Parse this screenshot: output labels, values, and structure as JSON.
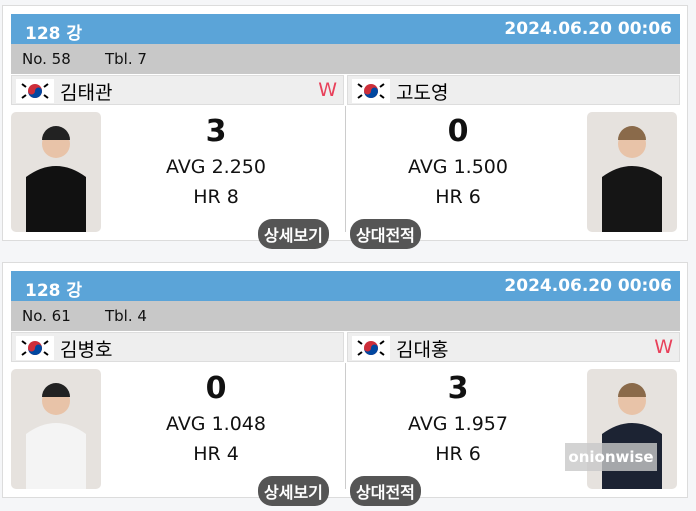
{
  "matches": [
    {
      "round": "128 강",
      "datetime": "2024.06.20 00:06",
      "no": "No. 58",
      "table": "Tbl. 7",
      "left": {
        "name": "김태관",
        "winner": "W",
        "score": "3",
        "avg": "AVG 2.250",
        "hr": "HR 8",
        "shirt": "#111111"
      },
      "right": {
        "name": "고도영",
        "winner": "",
        "score": "0",
        "avg": "AVG 1.500",
        "hr": "HR 6",
        "shirt": "#151515"
      },
      "detail_label": "상세보기",
      "h2h_label": "상대전적",
      "watermark": ""
    },
    {
      "round": "128 강",
      "datetime": "2024.06.20 00:06",
      "no": "No. 61",
      "table": "Tbl. 4",
      "left": {
        "name": "김병호",
        "winner": "",
        "score": "0",
        "avg": "AVG 1.048",
        "hr": "HR 4",
        "shirt": "#f4f4f4"
      },
      "right": {
        "name": "김대홍",
        "winner": "W",
        "score": "3",
        "avg": "AVG 1.957",
        "hr": "HR 6",
        "shirt": "#1c2333"
      },
      "detail_label": "상세보기",
      "h2h_label": "상대전적",
      "watermark": "onionwise"
    }
  ],
  "flag_icon": "south-korea-flag-icon",
  "colors": {
    "header": "#5ba4d8",
    "winner": "#e8405a",
    "button": "#555555"
  }
}
